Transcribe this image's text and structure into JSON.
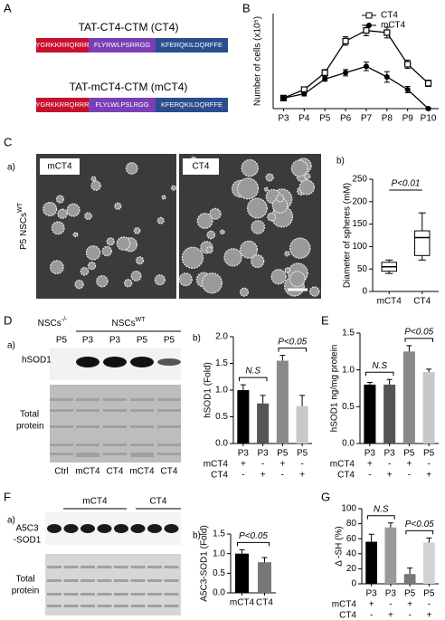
{
  "panel_a": {
    "label": "A",
    "constructs": [
      {
        "title": "TAT-CT4-CTM (CT4)",
        "segments": [
          "YGRKKRRQRRR",
          "FLYRWLPSRRGG",
          "KFERQKILDQRFFE"
        ]
      },
      {
        "title": "TAT-mCT4-CTM (mCT4)",
        "segments": [
          "YGRKKRRQRRR",
          "FLYLWLPSLRGG",
          "KFERQKILDQRFFE"
        ]
      }
    ]
  },
  "panel_c": {
    "label": "C",
    "sub_a": "a)",
    "image_labels": [
      "mCT4",
      "CT4"
    ],
    "side_label": "P5 NSCs",
    "side_label_sup": "WT"
  },
  "panel_d": {
    "label": "D",
    "sub_a": "a)",
    "group_labels": [
      {
        "text": "NSCs",
        "sup": "-/-"
      },
      {
        "text": "NSCs",
        "sup": "WT"
      }
    ],
    "lanes": [
      "P5",
      "P3",
      "P3",
      "P5",
      "P5"
    ],
    "band_label": "hSOD1",
    "total_label": [
      "Total",
      "protein"
    ],
    "treatments": [
      "Ctrl",
      "mCT4",
      "CT4",
      "mCT4",
      "CT4"
    ]
  },
  "panel_f": {
    "label": "F",
    "sub_a": "a)",
    "groups": [
      "mCT4",
      "CT4"
    ],
    "band_label": [
      "A5C3",
      "-SOD1"
    ],
    "total_label": [
      "Total",
      "protein"
    ]
  },
  "chart_data": [
    {
      "type": "line",
      "panel_label": "B",
      "ylabel": "Number of cells (x10⁵)",
      "categories": [
        "P3",
        "P4",
        "P5",
        "P6",
        "P7",
        "P8",
        "P9",
        "P10"
      ],
      "ylim": [
        0,
        4.5
      ],
      "legend": "top-right",
      "series": [
        {
          "name": "CT4",
          "color": "#000000",
          "marker": "open-square",
          "values": [
            0.5,
            0.9,
            1.7,
            3.2,
            3.7,
            3.6,
            2.1,
            1.2
          ],
          "errors": [
            0.05,
            0.1,
            0.15,
            0.2,
            0.25,
            0.25,
            0.2,
            0.15
          ]
        },
        {
          "name": "mCT4",
          "color": "#000000",
          "marker": "circle",
          "values": [
            0.5,
            0.7,
            1.4,
            1.7,
            2.0,
            1.5,
            0.9,
            0.0
          ],
          "errors": [
            0.05,
            0.1,
            0.1,
            0.15,
            0.2,
            0.25,
            0.15,
            0.05
          ]
        }
      ]
    },
    {
      "type": "box",
      "panel_label": "b)",
      "ylabel": "Diameter of spheres (mM)",
      "categories": [
        "mCT4",
        "CT4"
      ],
      "boxes": [
        {
          "min": 40,
          "q1": 45,
          "median": 55,
          "q3": 65,
          "max": 70
        },
        {
          "min": 70,
          "q1": 80,
          "median": 120,
          "q3": 135,
          "max": 175
        }
      ],
      "ylim": [
        0,
        250
      ],
      "yticks": [
        0,
        50,
        100,
        150,
        200,
        250
      ],
      "annotations": [
        "P<0.01"
      ]
    },
    {
      "type": "bar",
      "panel_label": "b)",
      "ylabel": "hSOD1 (Fold)",
      "categories": [
        "P3",
        "P3",
        "P5",
        "P5"
      ],
      "values": [
        1.0,
        0.75,
        1.55,
        0.7
      ],
      "errors": [
        0.1,
        0.15,
        0.1,
        0.2
      ],
      "colors": [
        "#000000",
        "#555555",
        "#8a8a8a",
        "#c8c8c8"
      ],
      "ylim": [
        0,
        2
      ],
      "yticks": [
        {
          "value": 0,
          "label": "0.0"
        },
        {
          "value": 0.5,
          "label": "0.5"
        },
        {
          "value": 1,
          "label": "1.0"
        },
        {
          "value": 1.5,
          "label": "1.5"
        },
        {
          "value": 2,
          "label": "2.0"
        }
      ],
      "annotations": [
        "N.S",
        "P<0.05"
      ],
      "treatment_rows": [
        {
          "name": "mCT4",
          "signs": [
            "+",
            "-",
            "+",
            "-"
          ]
        },
        {
          "name": "CT4",
          "signs": [
            "-",
            "+",
            "-",
            "+"
          ]
        }
      ]
    },
    {
      "type": "bar",
      "panel_label": "E",
      "ylabel": "hSOD1 ng/mg protein",
      "categories": [
        "P3",
        "P3",
        "P5",
        "P5"
      ],
      "values": [
        0.8,
        0.8,
        1.25,
        0.97
      ],
      "errors": [
        0.03,
        0.07,
        0.08,
        0.04
      ],
      "colors": [
        "#000000",
        "#555555",
        "#8a8a8a",
        "#c8c8c8"
      ],
      "ylim": [
        0,
        1.5
      ],
      "yticks": [
        {
          "value": 0,
          "label": "0.0"
        },
        {
          "value": 0.5,
          "label": "0.5"
        },
        {
          "value": 1,
          "label": "1.0"
        },
        {
          "value": 1.5,
          "label": "1.5"
        }
      ],
      "annotations": [
        "N.S",
        "P<0.05"
      ],
      "treatment_rows": [
        {
          "name": "mCT4",
          "signs": [
            "+",
            "-",
            "+",
            "-"
          ]
        },
        {
          "name": "CT4",
          "signs": [
            "-",
            "+",
            "-",
            "+"
          ]
        }
      ]
    },
    {
      "type": "bar",
      "panel_label": "b)",
      "ylabel": "A5C3-SOD1 (Fold)",
      "categories": [
        "mCT4",
        "CT4"
      ],
      "values": [
        1.0,
        0.78
      ],
      "errors": [
        0.1,
        0.12
      ],
      "colors": [
        "#000000",
        "#777777"
      ],
      "ylim": [
        0,
        1.5
      ],
      "yticks": [
        {
          "value": 0,
          "label": "0.0"
        },
        {
          "value": 0.5,
          "label": "0.5"
        },
        {
          "value": 1,
          "label": "1.0"
        },
        {
          "value": 1.5,
          "label": "1.5"
        }
      ],
      "annotations": [
        "P<0.05"
      ]
    },
    {
      "type": "bar",
      "panel_label": "G",
      "ylabel": "Δ -SH (%)",
      "categories": [
        "P3",
        "P3",
        "P5",
        "P5"
      ],
      "values": [
        56,
        75,
        13,
        55
      ],
      "errors": [
        10,
        6,
        8,
        6
      ],
      "colors": [
        "#000000",
        "#9a9a9a",
        "#777777",
        "#d2d2d2"
      ],
      "ylim": [
        0,
        100
      ],
      "yticks": [
        0,
        20,
        40,
        60,
        80,
        100
      ],
      "annotations": [
        "N.S",
        "P<0.05"
      ],
      "treatment_rows": [
        {
          "name": "mCT4",
          "signs": [
            "+",
            "-",
            "+",
            "-"
          ]
        },
        {
          "name": "CT4",
          "signs": [
            "-",
            "+",
            "-",
            "+"
          ]
        }
      ]
    }
  ]
}
